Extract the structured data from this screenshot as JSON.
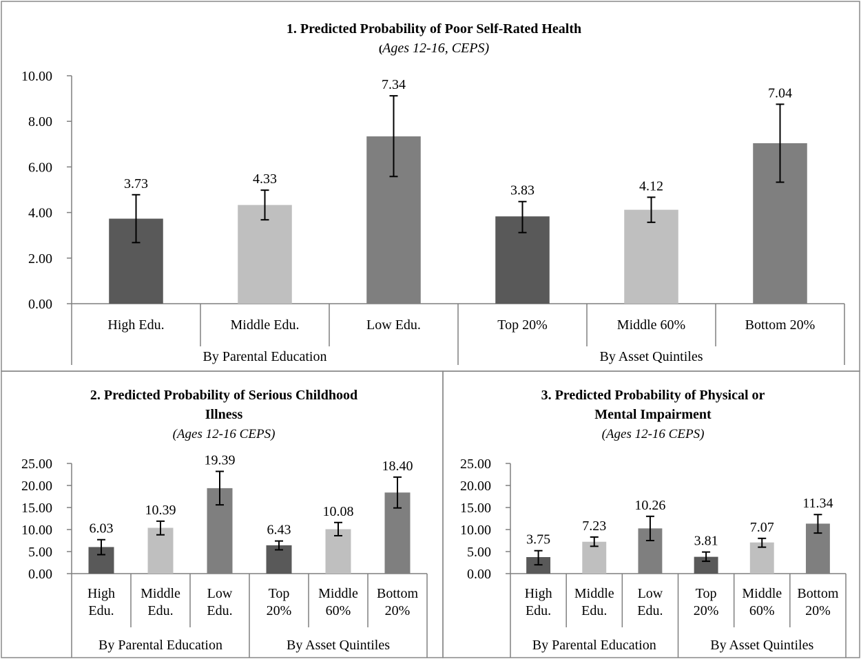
{
  "colors": {
    "dark": "#595959",
    "light": "#bfbfbf",
    "mid": "#7f7f7f",
    "axis": "#7f7f7f",
    "frame": "#888888"
  },
  "chart_data": [
    {
      "type": "bar",
      "title": "1. Predicted Probability of Poor Self-Rated Health",
      "title_prefix": "(",
      "subtitle": "Ages 12-16, CEPS)",
      "categories": [
        "High Edu.",
        "Middle Edu.",
        "Low Edu.",
        "Top 20%",
        "Middle 60%",
        "Bottom 20%"
      ],
      "groups": [
        "By Parental Education",
        "By Asset Quintiles"
      ],
      "values": [
        3.73,
        4.33,
        7.34,
        3.83,
        4.12,
        7.04
      ],
      "value_labels": [
        "3.73",
        "4.33",
        "7.34",
        "3.83",
        "4.12",
        "7.04"
      ],
      "error_low": [
        2.68,
        3.68,
        5.58,
        3.12,
        3.57,
        5.33
      ],
      "error_high": [
        4.78,
        4.98,
        9.12,
        4.48,
        4.67,
        8.75
      ],
      "ylim": [
        0,
        10
      ],
      "yticks": [
        "0.00",
        "2.00",
        "4.00",
        "6.00",
        "8.00",
        "10.00"
      ],
      "grid": false
    },
    {
      "type": "bar",
      "title_lines": [
        "2. Predicted Probability of Serious Childhood",
        "Illness"
      ],
      "subtitle": "(Ages 12-16 CEPS)",
      "categories": [
        [
          "High",
          "Edu."
        ],
        [
          "Middle",
          "Edu."
        ],
        [
          "Low",
          "Edu."
        ],
        [
          "Top",
          "20%"
        ],
        [
          "Middle",
          "60%"
        ],
        [
          "Bottom",
          "20%"
        ]
      ],
      "groups": [
        "By Parental Education",
        "By Asset Quintiles"
      ],
      "values": [
        6.03,
        10.39,
        19.39,
        6.43,
        10.08,
        18.4
      ],
      "value_labels": [
        "6.03",
        "10.39",
        "19.39",
        "6.43",
        "10.08",
        "18.40"
      ],
      "error_low": [
        4.3,
        8.8,
        15.6,
        5.4,
        8.6,
        14.9
      ],
      "error_high": [
        7.7,
        11.9,
        23.2,
        7.4,
        11.6,
        21.9
      ],
      "ylim": [
        0,
        25
      ],
      "yticks": [
        "0.00",
        "5.00",
        "10.00",
        "15.00",
        "20.00",
        "25.00"
      ],
      "grid": false
    },
    {
      "type": "bar",
      "title_lines": [
        "3. Predicted Probability of Physical or",
        "Mental Impairment"
      ],
      "subtitle": "(Ages 12-16 CEPS)",
      "categories": [
        [
          "High",
          "Edu."
        ],
        [
          "Middle",
          "Edu."
        ],
        [
          "Low",
          "Edu."
        ],
        [
          "Top",
          "20%"
        ],
        [
          "Middle",
          "60%"
        ],
        [
          "Bottom",
          "20%"
        ]
      ],
      "groups": [
        "By Parental Education",
        "By Asset Quintiles"
      ],
      "values": [
        3.75,
        7.23,
        10.26,
        3.81,
        7.07,
        11.34
      ],
      "value_labels": [
        "3.75",
        "7.23",
        "10.26",
        "3.81",
        "7.07",
        "11.34"
      ],
      "error_low": [
        2.0,
        6.2,
        7.5,
        2.8,
        6.0,
        9.2
      ],
      "error_high": [
        5.2,
        8.3,
        13.0,
        4.9,
        8.0,
        13.4
      ],
      "ylim": [
        0,
        25
      ],
      "yticks": [
        "0.00",
        "5.00",
        "10.00",
        "15.00",
        "20.00",
        "25.00"
      ],
      "grid": false
    }
  ]
}
